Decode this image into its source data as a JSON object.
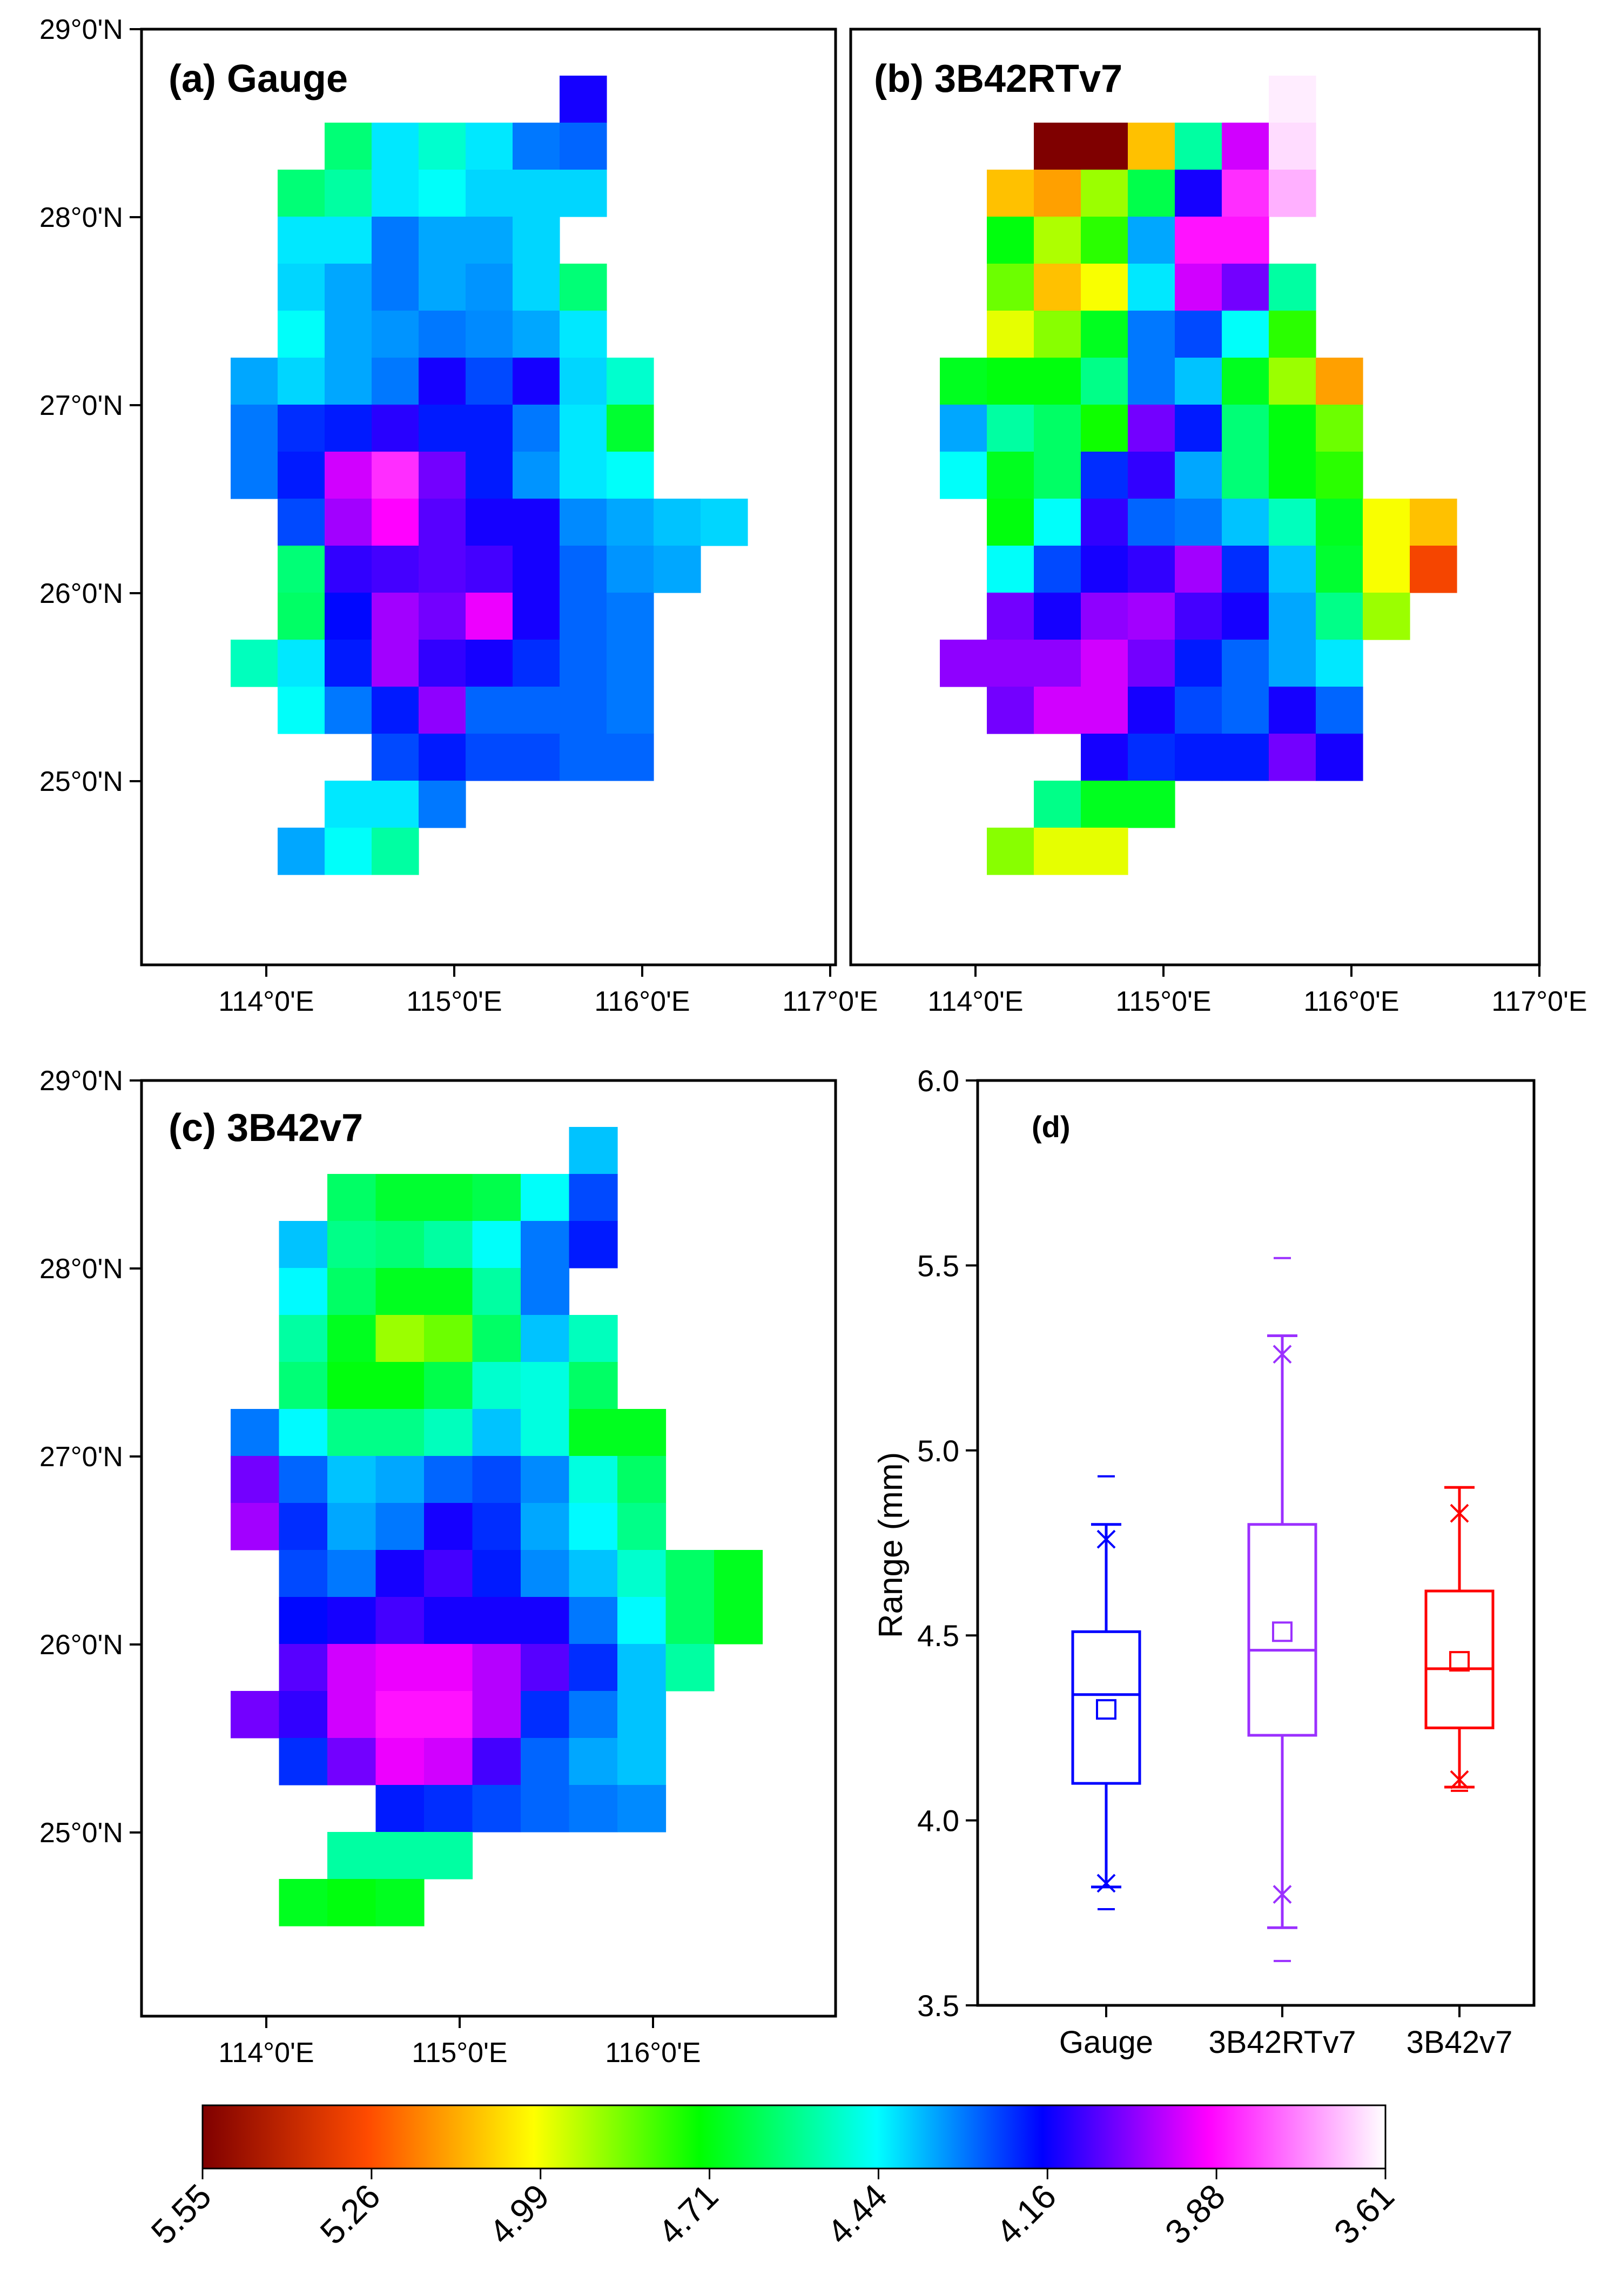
{
  "colors": {
    "colorbar_stops": [
      "#7f0000",
      "#ff4b00",
      "#ffff00",
      "#00ff00",
      "#00ffff",
      "#0000ff",
      "#ff00ff",
      "#ffffff"
    ],
    "gauge": "#0000ff",
    "rt": "#9b30ff",
    "v7": "#ff0000"
  },
  "chart_data": [
    {
      "type": "heatmap",
      "panel": "a",
      "title": "(a) Gauge",
      "x_tick_labels": [
        "114°0'E",
        "115°0'E",
        "116°0'E",
        "117°0'E"
      ],
      "y_tick_labels": [
        "29°0'N",
        "28°0'N",
        "27°0'N",
        "26°0'N",
        "25°0'N"
      ],
      "value_range": [
        3.61,
        5.55
      ],
      "grid_origin": {
        "lon": 113.875,
        "lat": 28.75
      },
      "cell_size_deg": 0.25,
      "rows": [
        [
          null,
          null,
          null,
          null,
          null,
          null,
          null,
          4.15,
          null,
          null,
          null
        ],
        [
          null,
          null,
          4.6,
          4.42,
          4.5,
          4.42,
          4.3,
          4.28,
          null,
          null,
          null
        ],
        [
          null,
          4.6,
          4.55,
          4.42,
          4.45,
          4.4,
          4.4,
          4.4,
          null,
          null,
          null
        ],
        [
          null,
          4.42,
          4.42,
          4.3,
          4.35,
          4.35,
          4.4,
          null,
          null,
          null,
          null
        ],
        [
          null,
          4.4,
          4.35,
          4.3,
          4.35,
          4.33,
          4.4,
          4.6,
          null,
          null,
          null
        ],
        [
          null,
          4.45,
          4.35,
          4.33,
          4.3,
          4.32,
          4.35,
          4.42,
          null,
          null,
          null
        ],
        [
          4.35,
          4.4,
          4.35,
          4.3,
          4.15,
          4.25,
          4.15,
          4.4,
          4.5,
          null,
          null
        ],
        [
          4.3,
          4.22,
          4.2,
          4.13,
          4.2,
          4.2,
          4.3,
          4.42,
          4.68,
          null,
          null
        ],
        [
          4.3,
          4.2,
          3.95,
          3.85,
          4.05,
          4.2,
          4.33,
          4.42,
          4.45,
          null,
          null
        ],
        [
          null,
          4.25,
          4.0,
          3.9,
          4.08,
          4.15,
          4.15,
          4.32,
          4.35,
          4.38,
          4.4
        ],
        [
          null,
          4.6,
          4.12,
          4.1,
          4.08,
          4.1,
          4.15,
          4.28,
          4.33,
          4.35,
          null
        ],
        [
          null,
          4.62,
          4.18,
          4.0,
          4.05,
          3.92,
          4.15,
          4.28,
          4.3,
          null,
          null
        ],
        [
          4.52,
          4.42,
          4.2,
          4.0,
          4.12,
          4.15,
          4.22,
          4.28,
          4.3,
          null,
          null
        ],
        [
          null,
          4.45,
          4.3,
          4.2,
          4.02,
          4.28,
          4.28,
          4.28,
          4.3,
          null,
          null
        ],
        [
          null,
          null,
          null,
          4.25,
          4.2,
          4.25,
          4.25,
          4.28,
          4.28,
          null,
          null
        ],
        [
          null,
          null,
          4.42,
          4.42,
          4.3,
          null,
          null,
          null,
          null,
          null,
          null
        ],
        [
          null,
          4.35,
          4.45,
          4.55,
          null,
          null,
          null,
          null,
          null,
          null,
          null
        ]
      ]
    },
    {
      "type": "heatmap",
      "panel": "b",
      "title": "(b) 3B42RTv7",
      "x_tick_labels": [
        "114°0'E",
        "115°0'E",
        "116°0'E",
        "117°0'E"
      ],
      "y_tick_labels": [],
      "value_range": [
        3.61,
        5.55
      ],
      "grid_origin": {
        "lon": 113.875,
        "lat": 28.75
      },
      "cell_size_deg": 0.25,
      "rows": [
        [
          null,
          null,
          null,
          null,
          null,
          null,
          null,
          3.63,
          null,
          null,
          null
        ],
        [
          null,
          null,
          5.55,
          5.55,
          5.1,
          4.55,
          3.95,
          3.65,
          null,
          null,
          null
        ],
        [
          null,
          5.1,
          5.15,
          4.9,
          4.65,
          4.15,
          3.85,
          3.7,
          null,
          null,
          null
        ],
        [
          null,
          4.72,
          4.92,
          4.78,
          4.35,
          3.88,
          3.88,
          null,
          null,
          null,
          null
        ],
        [
          null,
          4.85,
          5.1,
          5.0,
          4.42,
          3.95,
          4.05,
          4.55,
          null,
          null,
          null
        ],
        [
          null,
          4.98,
          4.88,
          4.7,
          4.3,
          4.25,
          4.45,
          4.78,
          null,
          null,
          null
        ],
        [
          4.7,
          4.72,
          4.72,
          4.58,
          4.3,
          4.38,
          4.7,
          4.9,
          5.15,
          null,
          null
        ],
        [
          4.35,
          4.55,
          4.62,
          4.75,
          4.05,
          4.2,
          4.6,
          4.72,
          4.85,
          null,
          null
        ],
        [
          4.45,
          4.7,
          4.62,
          4.22,
          4.12,
          4.35,
          4.6,
          4.72,
          4.78,
          null,
          null
        ],
        [
          null,
          4.72,
          4.45,
          4.12,
          4.28,
          4.3,
          4.38,
          4.52,
          4.7,
          5.0,
          5.1
        ],
        [
          null,
          4.45,
          4.25,
          4.15,
          4.12,
          4.0,
          4.22,
          4.38,
          4.68,
          5.0,
          5.3
        ],
        [
          null,
          4.05,
          4.15,
          4.02,
          4.0,
          4.1,
          4.15,
          4.35,
          4.58,
          4.9,
          null
        ],
        [
          4.02,
          4.02,
          4.02,
          3.95,
          4.05,
          4.2,
          4.28,
          4.35,
          4.42,
          null,
          null
        ],
        [
          null,
          4.05,
          3.95,
          3.95,
          4.15,
          4.25,
          4.28,
          4.15,
          4.28,
          null,
          null
        ],
        [
          null,
          null,
          null,
          4.15,
          4.22,
          4.2,
          4.2,
          4.05,
          4.15,
          null,
          null
        ],
        [
          null,
          null,
          4.58,
          4.7,
          4.7,
          null,
          null,
          null,
          null,
          null,
          null
        ],
        [
          null,
          4.88,
          4.98,
          4.98,
          null,
          null,
          null,
          null,
          null,
          null,
          null
        ]
      ]
    },
    {
      "type": "heatmap",
      "panel": "c",
      "title": "(c) 3B42v7",
      "x_tick_labels": [
        "114°0'E",
        "115°0'E",
        "116°0'E"
      ],
      "y_tick_labels": [
        "29°0'N",
        "28°0'N",
        "27°0'N",
        "26°0'N",
        "25°0'N"
      ],
      "value_range": [
        3.61,
        5.55
      ],
      "grid_origin": {
        "lon": 113.875,
        "lat": 28.75
      },
      "cell_size_deg": 0.25,
      "rows": [
        [
          null,
          null,
          null,
          null,
          null,
          null,
          null,
          4.38,
          null,
          null,
          null
        ],
        [
          null,
          null,
          4.62,
          4.68,
          4.68,
          4.65,
          4.45,
          4.25,
          null,
          null,
          null
        ],
        [
          null,
          4.38,
          4.58,
          4.6,
          4.55,
          4.45,
          4.3,
          4.2,
          null,
          null,
          null
        ],
        [
          null,
          4.44,
          4.62,
          4.7,
          4.7,
          4.55,
          4.3,
          null,
          null,
          null,
          null
        ],
        [
          null,
          4.55,
          4.7,
          4.9,
          4.85,
          4.62,
          4.38,
          4.52,
          null,
          null,
          null
        ],
        [
          null,
          4.6,
          4.72,
          4.72,
          4.65,
          4.5,
          4.48,
          4.62,
          null,
          null,
          null
        ],
        [
          4.3,
          4.44,
          4.58,
          4.58,
          4.52,
          4.38,
          4.48,
          4.7,
          4.7,
          null,
          null
        ],
        [
          4.05,
          4.28,
          4.38,
          4.35,
          4.28,
          4.25,
          4.32,
          4.48,
          4.62,
          null,
          null
        ],
        [
          4.0,
          4.22,
          4.35,
          4.3,
          4.15,
          4.22,
          4.35,
          4.44,
          4.58,
          null,
          null
        ],
        [
          null,
          4.25,
          4.3,
          4.15,
          4.1,
          4.2,
          4.32,
          4.38,
          4.5,
          4.62,
          4.7
        ],
        [
          null,
          4.18,
          4.15,
          4.1,
          4.15,
          4.15,
          4.15,
          4.3,
          4.44,
          4.62,
          4.7
        ],
        [
          null,
          4.08,
          3.95,
          3.92,
          3.92,
          3.98,
          4.08,
          4.22,
          4.38,
          4.55,
          null
        ],
        [
          4.05,
          4.12,
          3.95,
          3.88,
          3.88,
          3.98,
          4.22,
          4.3,
          4.38,
          null,
          null
        ],
        [
          null,
          4.22,
          4.05,
          3.92,
          3.95,
          4.1,
          4.28,
          4.35,
          4.38,
          null,
          null
        ],
        [
          null,
          null,
          null,
          4.2,
          4.22,
          4.25,
          4.28,
          4.3,
          4.32,
          null,
          null
        ],
        [
          null,
          null,
          4.55,
          4.55,
          4.55,
          null,
          null,
          null,
          null,
          null,
          null
        ],
        [
          null,
          4.7,
          4.72,
          4.7,
          null,
          null,
          null,
          null,
          null,
          null,
          null
        ]
      ]
    },
    {
      "type": "box",
      "panel": "d",
      "title": "(d)",
      "ylabel": "Range (mm)",
      "ylim": [
        3.5,
        6.0
      ],
      "y_ticks": [
        "3.5",
        "4.0",
        "4.5",
        "5.0",
        "5.5",
        "6.0"
      ],
      "categories": [
        "Gauge",
        "3B42RTv7",
        "3B42v7"
      ],
      "boxes": [
        {
          "name": "Gauge",
          "q1": 4.1,
          "median": 4.34,
          "q3": 4.51,
          "mean": 4.3,
          "whisker_low": 3.82,
          "whisker_high": 4.8,
          "p1": 3.83,
          "p99": 4.76,
          "min": 3.76,
          "max": 4.93
        },
        {
          "name": "3B42RTv7",
          "q1": 4.23,
          "median": 4.46,
          "q3": 4.8,
          "mean": 4.51,
          "whisker_low": 3.71,
          "whisker_high": 5.31,
          "p1": 3.8,
          "p99": 5.26,
          "min": 3.62,
          "max": 5.52
        },
        {
          "name": "3B42v7",
          "q1": 4.25,
          "median": 4.41,
          "q3": 4.62,
          "mean": 4.43,
          "whisker_low": 4.09,
          "whisker_high": 4.9,
          "p1": 4.11,
          "p99": 4.83,
          "min": 4.08,
          "max": 4.9
        }
      ]
    },
    {
      "type": "colorbar",
      "tick_labels": [
        "5.55",
        "5.26",
        "4.99",
        "4.71",
        "4.44",
        "4.16",
        "3.88",
        "3.61"
      ]
    }
  ]
}
